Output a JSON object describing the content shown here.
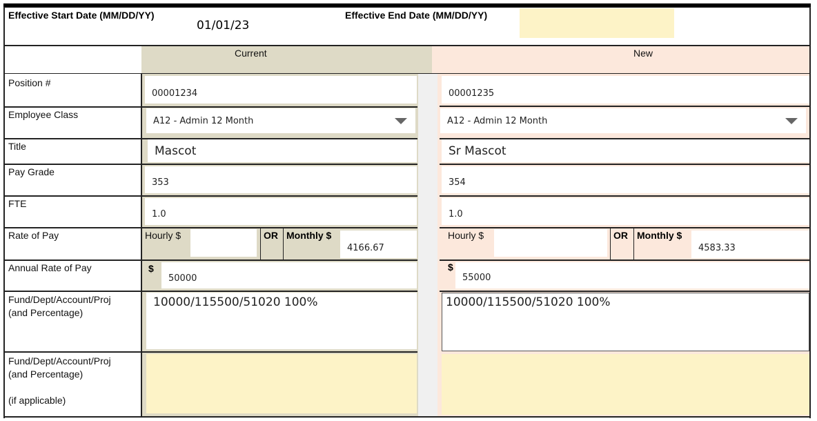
{
  "header": {
    "start_label": "Effective Start Date (MM/DD/YY)",
    "start_value": "01/01/23",
    "end_label": "Effective End Date (MM/DD/YY)",
    "end_value": ""
  },
  "columns": {
    "current": "Current",
    "new": "New"
  },
  "rows": {
    "position": {
      "label": "Position #",
      "current": "00001234",
      "new": "00001235"
    },
    "employee_class": {
      "label": "Employee Class",
      "current": "A12 - Admin 12 Month",
      "new": "A12 - Admin 12 Month"
    },
    "title": {
      "label": "Title",
      "current": "Mascot",
      "new": "Sr Mascot"
    },
    "pay_grade": {
      "label": "Pay Grade",
      "current": "353",
      "new": "354"
    },
    "fte": {
      "label": "FTE",
      "current": "1.0",
      "new": "1.0"
    },
    "rate_of_pay": {
      "label": "Rate of Pay",
      "hourly_label": "Hourly $",
      "required_mark": "*",
      "or_label": "OR",
      "monthly_label": "Monthly $",
      "current_hourly": "",
      "current_monthly": "4166.67",
      "new_hourly": "",
      "new_monthly": "4583.33"
    },
    "annual_rate": {
      "label": "Annual Rate of Pay",
      "currency": "$",
      "current": "50000",
      "new": "55000"
    },
    "fund": {
      "label": "Fund/Dept/Account/Proj",
      "label2": "(and Percentage)",
      "current": "10000/115500/51020 100%",
      "new": "10000/115500/51020 100%"
    },
    "fund2": {
      "label": "Fund/Dept/Account/Proj",
      "label2": "(and Percentage)",
      "label3": "(if applicable)",
      "current": "",
      "new": ""
    }
  },
  "colors": {
    "current_bg": "#dedac6",
    "new_bg": "#fce8dc",
    "optional_field": "#fdf3c7",
    "required": "#f07040"
  }
}
